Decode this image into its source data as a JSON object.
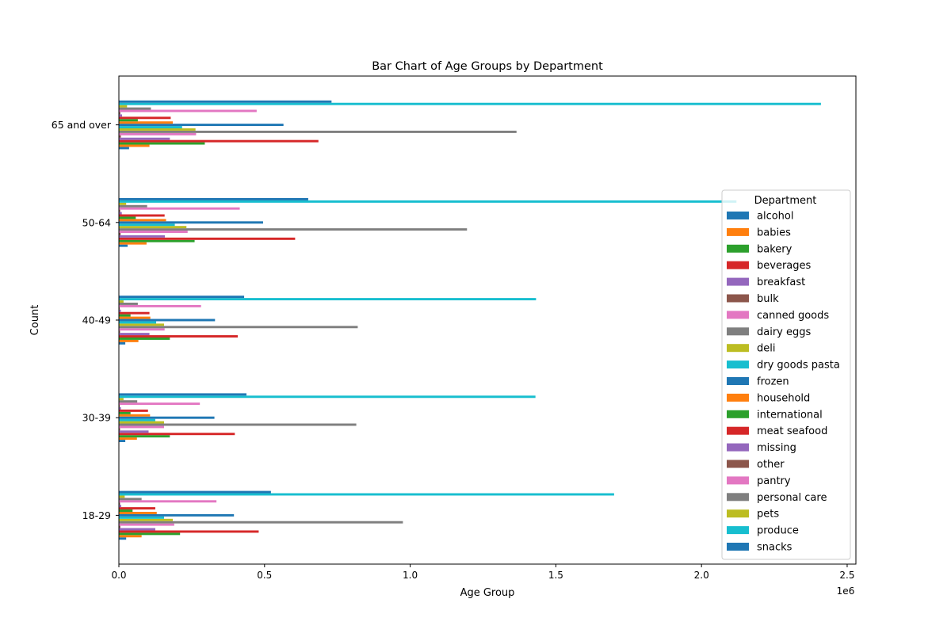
{
  "chart_data": {
    "type": "bar",
    "orientation": "horizontal",
    "title": "Bar Chart of Age Groups by Department",
    "xlabel": "Age Group",
    "ylabel": "Count",
    "x_offset_label": "1e6",
    "xlim": [
      0,
      2530000
    ],
    "x_ticks": [
      0,
      500000,
      1000000,
      1500000,
      2000000,
      2500000
    ],
    "x_tick_labels": [
      "0.0",
      "0.5",
      "1.0",
      "1.5",
      "2.0",
      "2.5"
    ],
    "grid": false,
    "legend_placement": "right",
    "legend_title": "Department",
    "categories": [
      "18-29",
      "30-39",
      "40-49",
      "50-64",
      "65 and over"
    ],
    "series": [
      {
        "name": "alcohol",
        "color": "#1f77b4",
        "values": [
          25000,
          22000,
          22000,
          30000,
          35000
        ]
      },
      {
        "name": "babies",
        "color": "#ff7f0e",
        "values": [
          78000,
          62000,
          67000,
          95000,
          105000
        ]
      },
      {
        "name": "bakery",
        "color": "#2ca02c",
        "values": [
          210000,
          175000,
          175000,
          260000,
          295000
        ]
      },
      {
        "name": "beverages",
        "color": "#d62728",
        "values": [
          480000,
          398000,
          408000,
          605000,
          685000
        ]
      },
      {
        "name": "breakfast",
        "color": "#9467bd",
        "values": [
          125000,
          102000,
          105000,
          158000,
          175000
        ]
      },
      {
        "name": "bulk",
        "color": "#8c564b",
        "values": [
          5000,
          4000,
          4000,
          6000,
          7000
        ]
      },
      {
        "name": "canned goods",
        "color": "#e377c2",
        "values": [
          190000,
          155000,
          157000,
          236000,
          265000
        ]
      },
      {
        "name": "dairy eggs",
        "color": "#7f7f7f",
        "values": [
          975000,
          815000,
          820000,
          1195000,
          1365000
        ]
      },
      {
        "name": "deli",
        "color": "#bcbd22",
        "values": [
          185000,
          155000,
          155000,
          232000,
          263000
        ]
      },
      {
        "name": "dry goods pasta",
        "color": "#17becf",
        "values": [
          155000,
          125000,
          128000,
          192000,
          217000
        ]
      },
      {
        "name": "frozen",
        "color": "#1f77b4",
        "values": [
          395000,
          328000,
          330000,
          495000,
          565000
        ]
      },
      {
        "name": "household",
        "color": "#ff7f0e",
        "values": [
          130000,
          107000,
          108000,
          162000,
          185000
        ]
      },
      {
        "name": "international",
        "color": "#2ca02c",
        "values": [
          47000,
          40000,
          40000,
          58000,
          65000
        ]
      },
      {
        "name": "meat seafood",
        "color": "#d62728",
        "values": [
          125000,
          100000,
          105000,
          157000,
          178000
        ]
      },
      {
        "name": "missing",
        "color": "#9467bd",
        "values": [
          8000,
          7000,
          7000,
          10000,
          11000
        ]
      },
      {
        "name": "other",
        "color": "#8c564b",
        "values": [
          4000,
          3000,
          3000,
          4500,
          5000
        ]
      },
      {
        "name": "pantry",
        "color": "#e377c2",
        "values": [
          335000,
          278000,
          282000,
          415000,
          473000
        ]
      },
      {
        "name": "personal care",
        "color": "#7f7f7f",
        "values": [
          78000,
          63000,
          65000,
          97000,
          110000
        ]
      },
      {
        "name": "pets",
        "color": "#bcbd22",
        "values": [
          20000,
          16000,
          16000,
          25000,
          28000
        ]
      },
      {
        "name": "produce",
        "color": "#17becf",
        "values": [
          1700000,
          1430000,
          1432000,
          2120000,
          2410000
        ]
      },
      {
        "name": "snacks",
        "color": "#1f77b4",
        "values": [
          522000,
          438000,
          430000,
          650000,
          730000
        ]
      }
    ]
  }
}
